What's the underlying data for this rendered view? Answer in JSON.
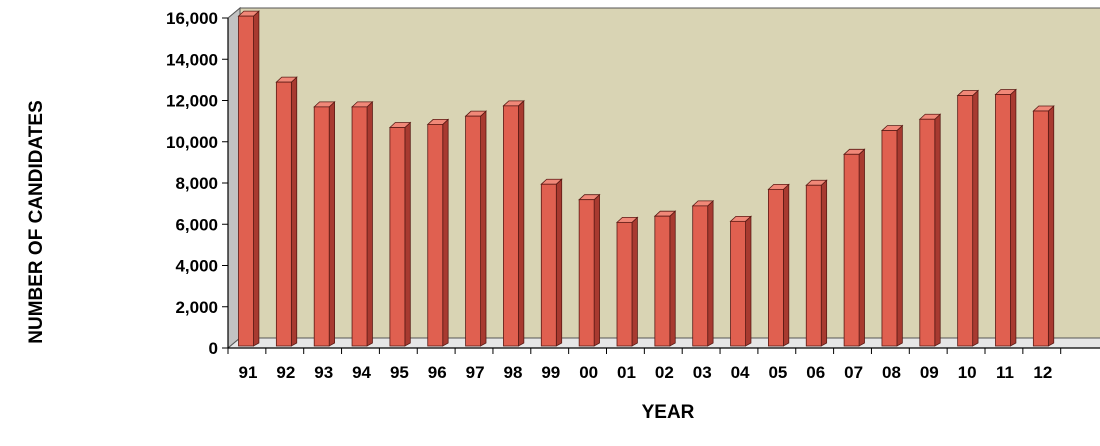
{
  "chart_data": {
    "type": "bar",
    "title": "",
    "xlabel": "YEAR",
    "ylabel": "NUMBER OF CANDIDATES",
    "categories": [
      "91",
      "92",
      "93",
      "94",
      "95",
      "96",
      "97",
      "98",
      "99",
      "00",
      "01",
      "02",
      "03",
      "04",
      "05",
      "06",
      "07",
      "08",
      "09",
      "10",
      "11",
      "12"
    ],
    "values": [
      15800,
      12600,
      11400,
      11400,
      10400,
      10550,
      10950,
      11450,
      7650,
      6900,
      5800,
      6100,
      6600,
      5850,
      7400,
      7600,
      9100,
      10250,
      10800,
      11950,
      12000,
      11200
    ],
    "ylim": [
      0,
      16000
    ],
    "yticks": [
      "0",
      "2,000",
      "4,000",
      "6,000",
      "8,000",
      "10,000",
      "12,000",
      "14,000",
      "16,000"
    ],
    "ytick_values": [
      0,
      2000,
      4000,
      6000,
      8000,
      10000,
      12000,
      14000,
      16000
    ],
    "grid": false,
    "style": "3d",
    "colors": {
      "bar_front": "#e06050",
      "bar_side": "#a83a30",
      "bar_top": "#f08878",
      "bar_outline": "#5a1a14",
      "wall": "#d9d4b4",
      "wall_side": "#c2c2c2",
      "floor": "#e6e6e6"
    }
  }
}
